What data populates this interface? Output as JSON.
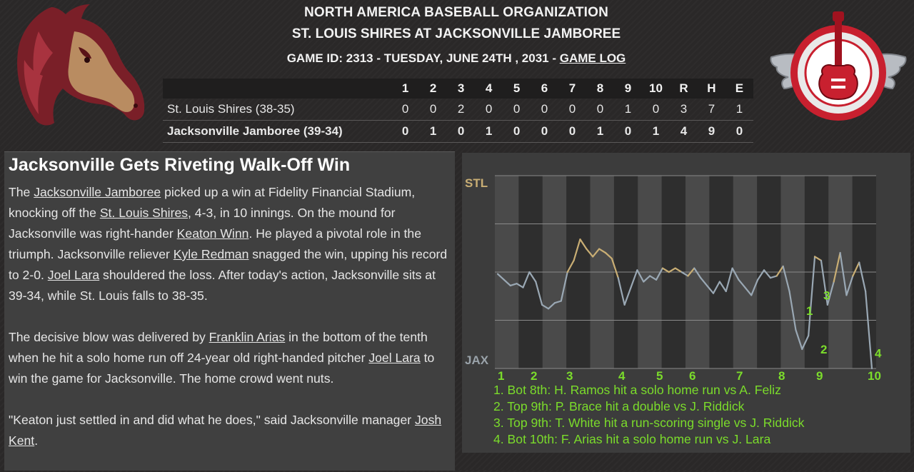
{
  "header": {
    "league": "NORTH AMERICA BASEBALL ORGANIZATION",
    "matchup": "ST. LOUIS SHIRES AT JACKSONVILLE JAMBOREE",
    "game_info": "GAME ID: 2313 - TUESDAY, JUNE 24TH , 2031 - ",
    "game_log_link": "GAME LOG"
  },
  "logos": {
    "away": "st-louis-shires-horse-logo",
    "home": "jacksonville-jamboree-winged-guitar-logo"
  },
  "boxscore": {
    "columns": [
      "1",
      "2",
      "3",
      "4",
      "5",
      "6",
      "7",
      "8",
      "9",
      "10",
      "R",
      "H",
      "E"
    ],
    "rows": [
      {
        "team": "St. Louis Shires (38-35)",
        "cells": [
          "0",
          "0",
          "2",
          "0",
          "0",
          "0",
          "0",
          "0",
          "1",
          "0",
          "3",
          "7",
          "1"
        ]
      },
      {
        "team": "Jacksonville Jamboree (39-34)",
        "cells": [
          "0",
          "1",
          "0",
          "1",
          "0",
          "0",
          "0",
          "1",
          "0",
          "1",
          "4",
          "9",
          "0"
        ]
      }
    ]
  },
  "recap": {
    "title": "Jacksonville Gets Riveting Walk-Off Win",
    "p1": [
      {
        "t": "The "
      },
      {
        "link": "Jacksonville Jamboree"
      },
      {
        "t": " picked up a win at Fidelity Financial Stadium, knocking off the "
      },
      {
        "link": "St. Louis Shires"
      },
      {
        "t": ", 4-3, in 10 innings. On the mound for Jacksonville was right-hander "
      },
      {
        "link": "Keaton Winn"
      },
      {
        "t": ". He played a pivotal role in the triumph. Jacksonville reliever "
      },
      {
        "link": "Kyle Redman"
      },
      {
        "t": " snagged the win, upping his record to 2-0. "
      },
      {
        "link": "Joel Lara"
      },
      {
        "t": " shouldered the loss. After today's action, Jacksonville sits at 39-34, while St. Louis falls to 38-35."
      }
    ],
    "p2": [
      {
        "t": "The decisive blow was delivered by "
      },
      {
        "link": "Franklin Arias"
      },
      {
        "t": " in the bottom of the tenth when he hit a solo home run off 24-year old right-handed pitcher "
      },
      {
        "link": "Joel Lara"
      },
      {
        "t": " to win the game for Jacksonville. The home crowd went nuts."
      }
    ],
    "p3": [
      {
        "t": "\"Keaton just settled in and did what he does,\" said Jacksonville manager "
      },
      {
        "link": "Josh Kent"
      },
      {
        "t": "."
      }
    ]
  },
  "chart_data": {
    "type": "line",
    "top_label": "STL",
    "bottom_label": "JAX",
    "x_labels": [
      "1",
      "2",
      "3",
      "4",
      "5",
      "6",
      "7",
      "8",
      "9",
      "10"
    ],
    "ylim": [
      0,
      1
    ],
    "grid": true,
    "colors": {
      "away_favored": "#c9ae74",
      "home_favored": "#9aa8b4",
      "innings_band": "#4a4a4a",
      "axis_text": "#7bdc2b"
    },
    "values": [
      0.49,
      0.46,
      0.43,
      0.44,
      0.42,
      0.5,
      0.45,
      0.33,
      0.31,
      0.34,
      0.35,
      0.5,
      0.56,
      0.67,
      0.62,
      0.58,
      0.62,
      0.6,
      0.57,
      0.47,
      0.33,
      0.42,
      0.51,
      0.45,
      0.48,
      0.46,
      0.52,
      0.5,
      0.52,
      0.5,
      0.48,
      0.52,
      0.47,
      0.43,
      0.39,
      0.45,
      0.4,
      0.52,
      0.46,
      0.42,
      0.38,
      0.46,
      0.51,
      0.47,
      0.48,
      0.53,
      0.4,
      0.2,
      0.1,
      0.17,
      0.58,
      0.56,
      0.33,
      0.45,
      0.6,
      0.38,
      0.48,
      0.55,
      0.4,
      0.0
    ],
    "annotations": [
      {
        "label": "1",
        "value": 0.3
      },
      {
        "label": "2",
        "value": 0.1
      },
      {
        "label": "3",
        "value": 0.38
      },
      {
        "label": "4",
        "value": 0.08
      }
    ],
    "events": [
      "1. Bot 8th: H. Ramos hit a solo home run vs A. Feliz",
      "2. Top 9th: P. Brace hit a double vs J. Riddick",
      "3. Top 9th: T. White hit a run-scoring single vs J. Riddick",
      "4. Bot 10th: F. Arias hit a solo home run vs J. Lara"
    ]
  }
}
